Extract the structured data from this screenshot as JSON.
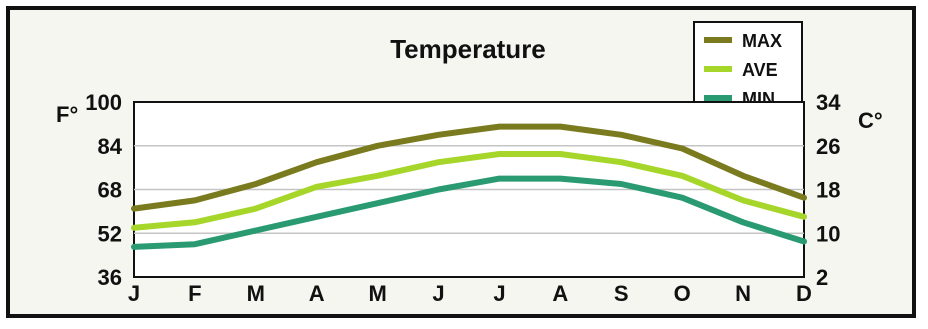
{
  "chart_data": {
    "type": "line",
    "title": "Temperature",
    "ylabel_left": "F°",
    "ylabel_right": "C°",
    "categories": [
      "J",
      "F",
      "M",
      "A",
      "M",
      "J",
      "J",
      "A",
      "S",
      "O",
      "N",
      "D"
    ],
    "ylim": [
      36,
      100
    ],
    "yticks": [
      "36",
      "52",
      "68",
      "84",
      "100"
    ],
    "y2ticks": [
      "2",
      "10",
      "18",
      "26",
      "34"
    ],
    "grid": true,
    "legend_position": "top-right",
    "series": [
      {
        "name": "MAX",
        "color": "#7a7a1e",
        "values": [
          61,
          64,
          70,
          78,
          84,
          88,
          91,
          91,
          88,
          83,
          73,
          65
        ]
      },
      {
        "name": "AVE",
        "color": "#a6d62a",
        "values": [
          54,
          56,
          61,
          69,
          73,
          78,
          81,
          81,
          78,
          73,
          64,
          58
        ]
      },
      {
        "name": "MIN",
        "color": "#2a9a72",
        "values": [
          47,
          48,
          53,
          58,
          63,
          68,
          72,
          72,
          70,
          65,
          56,
          49
        ]
      }
    ]
  }
}
